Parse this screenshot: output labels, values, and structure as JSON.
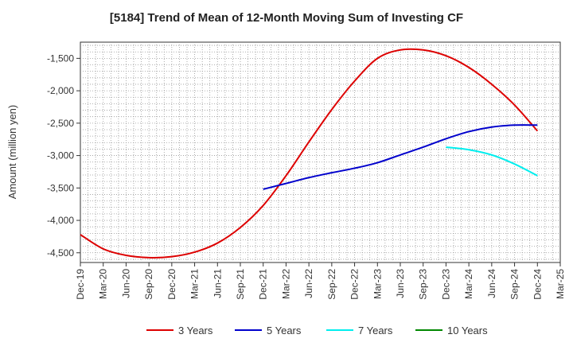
{
  "chart_data": {
    "type": "line",
    "title": "[5184]  Trend of Mean of 12-Month Moving Sum of Investing CF",
    "ylabel": "Amount (million yen)",
    "xlabel": "",
    "ylim": [
      -4650,
      -1250
    ],
    "yticks": [
      -1500,
      -2000,
      -2500,
      -3000,
      -3500,
      -4000,
      -4500
    ],
    "ytick_labels": [
      "-1,500",
      "-2,000",
      "-2,500",
      "-3,000",
      "-3,500",
      "-4,000",
      "-4,500"
    ],
    "xticks": [
      "Dec-19",
      "Mar-20",
      "Jun-20",
      "Sep-20",
      "Dec-20",
      "Mar-21",
      "Jun-21",
      "Sep-21",
      "Dec-21",
      "Mar-22",
      "Jun-22",
      "Sep-22",
      "Dec-22",
      "Mar-23",
      "Jun-23",
      "Sep-23",
      "Dec-23",
      "Mar-24",
      "Jun-24",
      "Sep-24",
      "Dec-24",
      "Mar-25"
    ],
    "grid": true,
    "legend_position": "bottom",
    "series": [
      {
        "name": "3 Years",
        "color": "#dd0000",
        "x": [
          "Dec-19",
          "Mar-20",
          "Jun-20",
          "Sep-20",
          "Dec-20",
          "Mar-21",
          "Jun-21",
          "Sep-21",
          "Dec-21",
          "Mar-22",
          "Jun-22",
          "Sep-22",
          "Dec-22",
          "Mar-23",
          "Jun-23",
          "Sep-23",
          "Dec-23",
          "Mar-24",
          "Jun-24",
          "Sep-24",
          "Dec-24"
        ],
        "values": [
          -4220,
          -4440,
          -4540,
          -4575,
          -4560,
          -4490,
          -4350,
          -4110,
          -3770,
          -3310,
          -2790,
          -2290,
          -1850,
          -1500,
          -1370,
          -1370,
          -1460,
          -1640,
          -1900,
          -2220,
          -2620
        ]
      },
      {
        "name": "5 Years",
        "color": "#0000cc",
        "x": [
          "Dec-21",
          "Mar-22",
          "Jun-22",
          "Sep-22",
          "Dec-22",
          "Mar-23",
          "Jun-23",
          "Sep-23",
          "Dec-23",
          "Mar-24",
          "Jun-24",
          "Sep-24",
          "Dec-24"
        ],
        "values": [
          -3520,
          -3430,
          -3340,
          -3265,
          -3195,
          -3110,
          -2990,
          -2870,
          -2740,
          -2630,
          -2560,
          -2530,
          -2530
        ]
      },
      {
        "name": "7 Years",
        "color": "#00eeee",
        "x": [
          "Dec-23",
          "Mar-24",
          "Jun-24",
          "Sep-24",
          "Dec-24"
        ],
        "values": [
          -2870,
          -2910,
          -2990,
          -3130,
          -3310
        ]
      },
      {
        "name": "10 Years",
        "color": "#008800",
        "x": [],
        "values": []
      }
    ]
  }
}
